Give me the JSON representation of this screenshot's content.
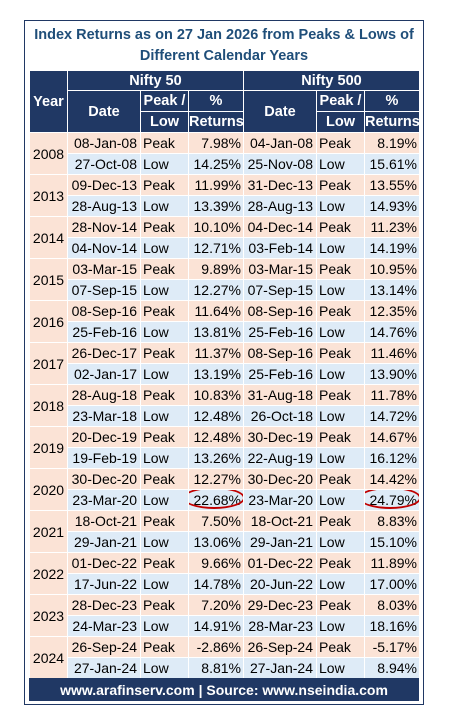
{
  "title": {
    "line1": "Index Returns as on 27 Jan 2026 from Peaks & Lows of",
    "line2": "Different Calendar Years"
  },
  "headers": {
    "year": "Year",
    "nifty50": "Nifty 50",
    "nifty500": "Nifty 500",
    "date": "Date",
    "peak_low_1": "Peak /",
    "peak_low_2": "Low",
    "returns_1": "%",
    "returns_2": "Returns"
  },
  "colors": {
    "header_bg": "#203864",
    "peak_row_bg": "#fbe3d6",
    "low_row_bg": "#deebf7",
    "highlight_circle": "#c00000"
  },
  "years": [
    {
      "year": "2008",
      "rows": [
        {
          "d1": "08-Jan-08",
          "t1": "Peak",
          "r1": "7.98%",
          "d2": "04-Jan-08",
          "t2": "Peak",
          "r2": "8.19%"
        },
        {
          "d1": "27-Oct-08",
          "t1": "Low",
          "r1": "14.25%",
          "d2": "25-Nov-08",
          "t2": "Low",
          "r2": "15.61%"
        }
      ]
    },
    {
      "year": "2013",
      "rows": [
        {
          "d1": "09-Dec-13",
          "t1": "Peak",
          "r1": "11.99%",
          "d2": "31-Dec-13",
          "t2": "Peak",
          "r2": "13.55%"
        },
        {
          "d1": "28-Aug-13",
          "t1": "Low",
          "r1": "13.39%",
          "d2": "28-Aug-13",
          "t2": "Low",
          "r2": "14.93%"
        }
      ]
    },
    {
      "year": "2014",
      "rows": [
        {
          "d1": "28-Nov-14",
          "t1": "Peak",
          "r1": "10.10%",
          "d2": "04-Dec-14",
          "t2": "Peak",
          "r2": "11.23%"
        },
        {
          "d1": "04-Nov-14",
          "t1": "Low",
          "r1": "12.71%",
          "d2": "03-Feb-14",
          "t2": "Low",
          "r2": "14.19%"
        }
      ]
    },
    {
      "year": "2015",
      "rows": [
        {
          "d1": "03-Mar-15",
          "t1": "Peak",
          "r1": "9.89%",
          "d2": "03-Mar-15",
          "t2": "Peak",
          "r2": "10.95%"
        },
        {
          "d1": "07-Sep-15",
          "t1": "Low",
          "r1": "12.27%",
          "d2": "07-Sep-15",
          "t2": "Low",
          "r2": "13.14%"
        }
      ]
    },
    {
      "year": "2016",
      "rows": [
        {
          "d1": "08-Sep-16",
          "t1": "Peak",
          "r1": "11.64%",
          "d2": "08-Sep-16",
          "t2": "Peak",
          "r2": "12.35%"
        },
        {
          "d1": "25-Feb-16",
          "t1": "Low",
          "r1": "13.81%",
          "d2": "25-Feb-16",
          "t2": "Low",
          "r2": "14.76%"
        }
      ]
    },
    {
      "year": "2017",
      "rows": [
        {
          "d1": "26-Dec-17",
          "t1": "Peak",
          "r1": "11.37%",
          "d2": "08-Sep-16",
          "t2": "Peak",
          "r2": "11.46%"
        },
        {
          "d1": "02-Jan-17",
          "t1": "Low",
          "r1": "13.19%",
          "d2": "25-Feb-16",
          "t2": "Low",
          "r2": "13.90%"
        }
      ]
    },
    {
      "year": "2018",
      "rows": [
        {
          "d1": "28-Aug-18",
          "t1": "Peak",
          "r1": "10.83%",
          "d2": "31-Aug-18",
          "t2": "Peak",
          "r2": "11.78%"
        },
        {
          "d1": "23-Mar-18",
          "t1": "Low",
          "r1": "12.48%",
          "d2": "26-Oct-18",
          "t2": "Low",
          "r2": "14.72%"
        }
      ]
    },
    {
      "year": "2019",
      "rows": [
        {
          "d1": "20-Dec-19",
          "t1": "Peak",
          "r1": "12.48%",
          "d2": "30-Dec-19",
          "t2": "Peak",
          "r2": "14.67%"
        },
        {
          "d1": "19-Feb-19",
          "t1": "Low",
          "r1": "13.26%",
          "d2": "22-Aug-19",
          "t2": "Low",
          "r2": "16.12%"
        }
      ]
    },
    {
      "year": "2020",
      "rows": [
        {
          "d1": "30-Dec-20",
          "t1": "Peak",
          "r1": "12.27%",
          "d2": "30-Dec-20",
          "t2": "Peak",
          "r2": "14.42%"
        },
        {
          "d1": "23-Mar-20",
          "t1": "Low",
          "r1": "22.68%",
          "d2": "23-Mar-20",
          "t2": "Low",
          "r2": "24.79%",
          "circled": true
        }
      ]
    },
    {
      "year": "2021",
      "rows": [
        {
          "d1": "18-Oct-21",
          "t1": "Peak",
          "r1": "7.50%",
          "d2": "18-Oct-21",
          "t2": "Peak",
          "r2": "8.83%"
        },
        {
          "d1": "29-Jan-21",
          "t1": "Low",
          "r1": "13.06%",
          "d2": "29-Jan-21",
          "t2": "Low",
          "r2": "15.10%"
        }
      ]
    },
    {
      "year": "2022",
      "rows": [
        {
          "d1": "01-Dec-22",
          "t1": "Peak",
          "r1": "9.66%",
          "d2": "01-Dec-22",
          "t2": "Peak",
          "r2": "11.89%"
        },
        {
          "d1": "17-Jun-22",
          "t1": "Low",
          "r1": "14.78%",
          "d2": "20-Jun-22",
          "t2": "Low",
          "r2": "17.00%"
        }
      ]
    },
    {
      "year": "2023",
      "rows": [
        {
          "d1": "28-Dec-23",
          "t1": "Peak",
          "r1": "7.20%",
          "d2": "29-Dec-23",
          "t2": "Peak",
          "r2": "8.03%"
        },
        {
          "d1": "24-Mar-23",
          "t1": "Low",
          "r1": "14.91%",
          "d2": "28-Mar-23",
          "t2": "Low",
          "r2": "18.16%"
        }
      ]
    },
    {
      "year": "2024",
      "rows": [
        {
          "d1": "26-Sep-24",
          "t1": "Peak",
          "r1": "-2.86%",
          "d2": "26-Sep-24",
          "t2": "Peak",
          "r2": "-5.17%"
        },
        {
          "d1": "27-Jan-24",
          "t1": "Low",
          "r1": "8.81%",
          "d2": "27-Jan-24",
          "t2": "Low",
          "r2": "8.94%"
        }
      ]
    }
  ],
  "footer": "www.arafinserv.com | Source: www.nseindia.com"
}
